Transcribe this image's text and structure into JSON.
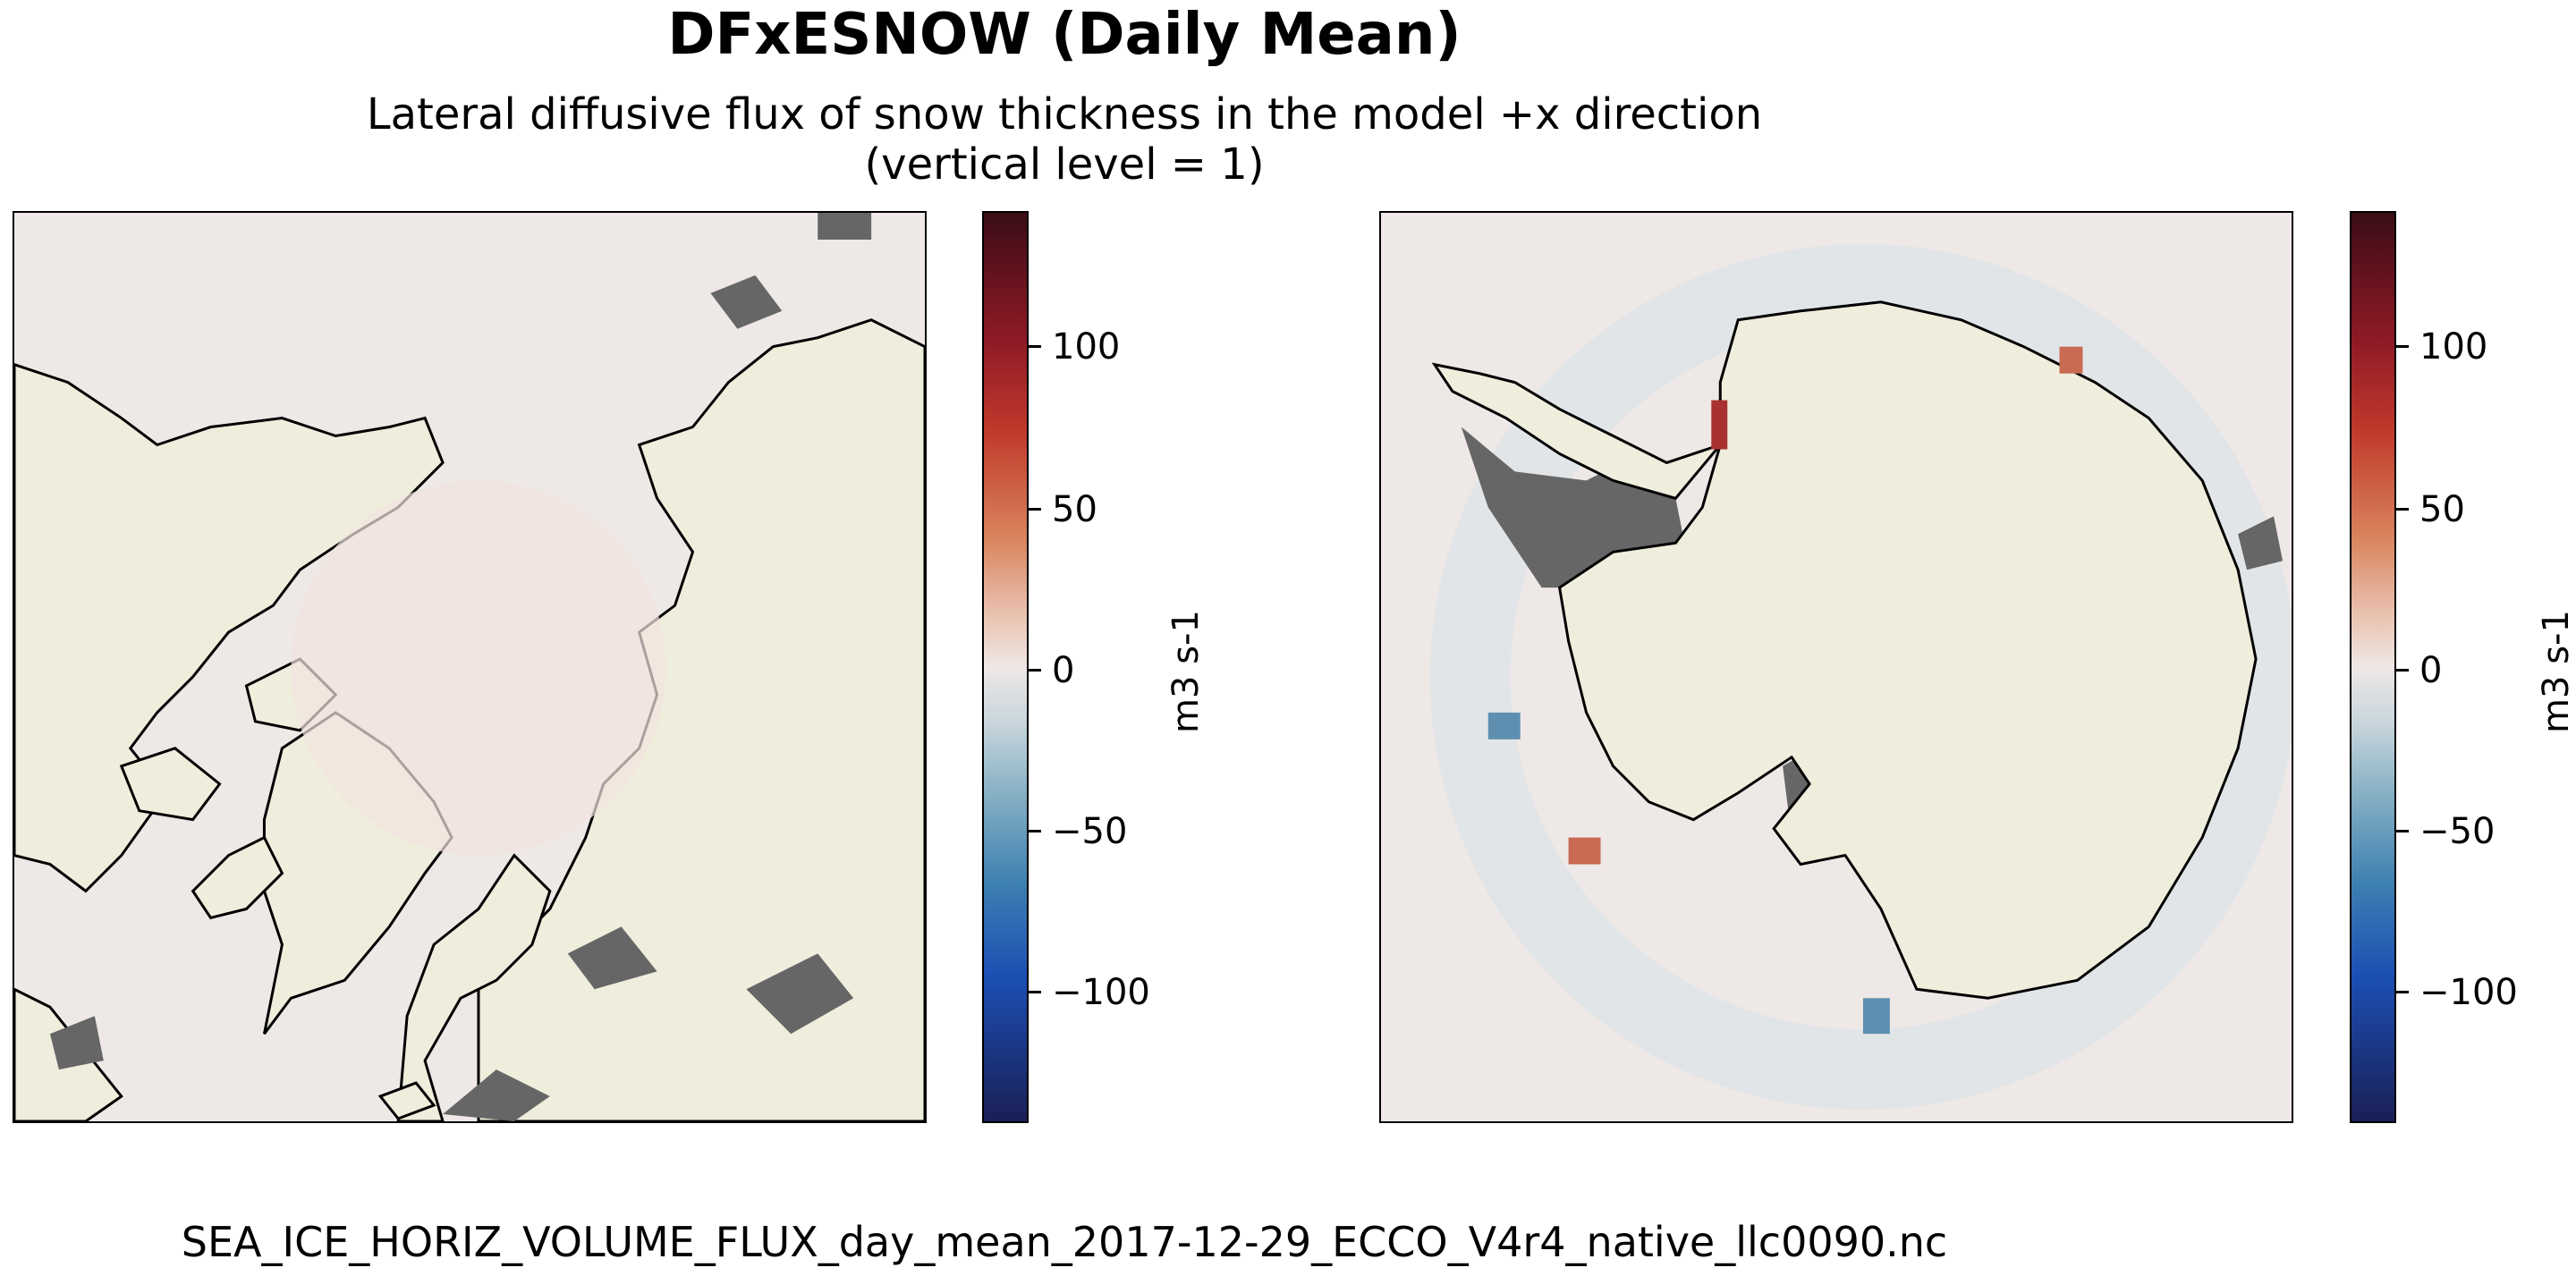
{
  "title": "DFxESNOW (Daily Mean)",
  "subtitle_line1": "Lateral diffusive flux of snow thickness in the model +x direction",
  "subtitle_line2": "(vertical level = 1)",
  "colorbar": {
    "unit": "m3 s-1",
    "ticks": [
      {
        "value": 100,
        "label": "100"
      },
      {
        "value": 50,
        "label": "50"
      },
      {
        "value": 0,
        "label": "0"
      },
      {
        "value": -50,
        "label": "−50"
      },
      {
        "value": -100,
        "label": "−100"
      }
    ],
    "range": [
      -140,
      140
    ],
    "colormap": "balance (dark red → white → dark blue)"
  },
  "maps": [
    {
      "id": "north",
      "projection": "North polar stereographic",
      "ocean_color": "#eee8e6",
      "land_color": "#efeddc",
      "masked_color": "#666666"
    },
    {
      "id": "south",
      "projection": "South polar stereographic",
      "ocean_color": "#eee8e6",
      "land_color": "#efeddc",
      "masked_color": "#666666"
    }
  ],
  "footer": "SEA_ICE_HORIZ_VOLUME_FLUX_day_mean_2017-12-29_ECCO_V4r4_native_llc0090.nc"
}
